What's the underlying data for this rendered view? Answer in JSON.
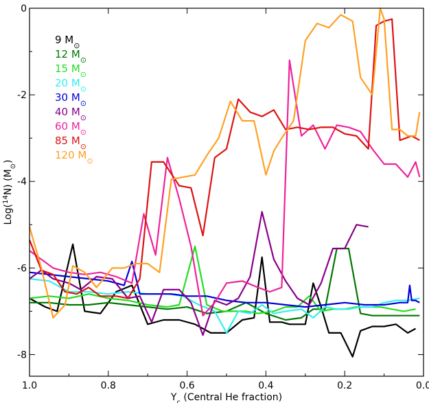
{
  "chart_data": {
    "type": "line",
    "xlabel": {
      "main": "Y",
      "sub": "c",
      "rest": " (Central He fraction)"
    },
    "ylabel": {
      "pre": "Log(",
      "sup": "14",
      "post": "N) (M",
      "sym": "⊙",
      "close": ")"
    },
    "xlim": [
      1.0,
      0.0
    ],
    "ylim": [
      -8.5,
      0.0
    ],
    "x_ticks": [
      1.0,
      0.8,
      0.6,
      0.4,
      0.2,
      0.0
    ],
    "x_tick_labels": [
      "1.0",
      "0.8",
      "0.6",
      "0.4",
      "0.2",
      "0.0"
    ],
    "y_ticks": [
      -8,
      -6,
      -4,
      -2,
      0
    ],
    "y_tick_labels": [
      "-8",
      "-6",
      "-4",
      "-2",
      "0"
    ],
    "grid": false,
    "legend_position": "top-left",
    "sun_symbol": "⊙",
    "series": [
      {
        "name": "9 M",
        "color": "#000000",
        "x": [
          1.0,
          0.96,
          0.93,
          0.89,
          0.86,
          0.82,
          0.78,
          0.74,
          0.7,
          0.66,
          0.62,
          0.58,
          0.54,
          0.5,
          0.46,
          0.43,
          0.41,
          0.39,
          0.36,
          0.34,
          0.32,
          0.3,
          0.28,
          0.26,
          0.24,
          0.21,
          0.18,
          0.16,
          0.13,
          0.1,
          0.07,
          0.04,
          0.02
        ],
        "y": [
          -6.7,
          -6.9,
          -7.0,
          -5.45,
          -7.0,
          -7.05,
          -6.55,
          -6.4,
          -7.3,
          -7.2,
          -7.2,
          -7.3,
          -7.5,
          -7.5,
          -7.2,
          -7.15,
          -5.75,
          -7.25,
          -7.25,
          -7.3,
          -7.3,
          -7.3,
          -6.35,
          -6.9,
          -7.5,
          -7.5,
          -8.05,
          -7.45,
          -7.35,
          -7.35,
          -7.3,
          -7.5,
          -7.4
        ]
      },
      {
        "name": "12 M",
        "color": "#007700",
        "x": [
          1.0,
          0.95,
          0.9,
          0.85,
          0.8,
          0.75,
          0.7,
          0.65,
          0.6,
          0.55,
          0.5,
          0.45,
          0.4,
          0.35,
          0.31,
          0.28,
          0.25,
          0.22,
          0.19,
          0.16,
          0.13,
          0.1,
          0.07,
          0.04,
          0.01
        ],
        "y": [
          -6.8,
          -6.8,
          -6.85,
          -6.85,
          -6.8,
          -6.85,
          -6.9,
          -6.95,
          -6.9,
          -7.05,
          -7.0,
          -6.8,
          -7.05,
          -7.2,
          -7.15,
          -6.95,
          -6.95,
          -5.55,
          -5.55,
          -7.05,
          -7.1,
          -7.1,
          -7.1,
          -7.1,
          -7.1
        ]
      },
      {
        "name": "15 M",
        "color": "#22dd22",
        "x": [
          1.0,
          0.95,
          0.9,
          0.85,
          0.8,
          0.75,
          0.7,
          0.65,
          0.62,
          0.58,
          0.55,
          0.51,
          0.48,
          0.45,
          0.42,
          0.38,
          0.35,
          0.32,
          0.29,
          0.26,
          0.23,
          0.2,
          0.17,
          0.14,
          0.11,
          0.08,
          0.05,
          0.02
        ],
        "y": [
          -6.7,
          -6.65,
          -6.7,
          -6.6,
          -6.7,
          -6.75,
          -6.85,
          -6.9,
          -6.85,
          -5.5,
          -6.85,
          -7.0,
          -7.0,
          -7.0,
          -7.05,
          -7.0,
          -6.9,
          -6.9,
          -6.65,
          -7.0,
          -6.95,
          -6.95,
          -6.9,
          -6.9,
          -6.9,
          -6.95,
          -7.0,
          -6.95
        ]
      },
      {
        "name": "20 M",
        "color": "#33eeee",
        "x": [
          1.0,
          0.95,
          0.9,
          0.85,
          0.8,
          0.75,
          0.7,
          0.65,
          0.61,
          0.57,
          0.53,
          0.5,
          0.47,
          0.44,
          0.41,
          0.38,
          0.35,
          0.31,
          0.28,
          0.25,
          0.22,
          0.19,
          0.16,
          0.13,
          0.1,
          0.07,
          0.04,
          0.01
        ],
        "y": [
          -6.25,
          -6.3,
          -6.55,
          -6.55,
          -6.6,
          -6.55,
          -6.6,
          -6.6,
          -6.65,
          -6.85,
          -7.0,
          -7.5,
          -7.0,
          -7.05,
          -6.85,
          -7.05,
          -7.0,
          -6.95,
          -7.15,
          -6.9,
          -6.95,
          -6.95,
          -6.9,
          -6.9,
          -6.8,
          -6.75,
          -6.75,
          -6.7
        ]
      },
      {
        "name": "30 M",
        "color": "#0000dd",
        "x": [
          1.0,
          0.95,
          0.9,
          0.85,
          0.8,
          0.76,
          0.74,
          0.72,
          0.68,
          0.64,
          0.6,
          0.55,
          0.5,
          0.45,
          0.4,
          0.35,
          0.3,
          0.25,
          0.2,
          0.15,
          0.1,
          0.06,
          0.04,
          0.035,
          0.03,
          0.02,
          0.01
        ],
        "y": [
          -6.1,
          -6.15,
          -6.2,
          -6.25,
          -6.3,
          -6.4,
          -5.85,
          -6.6,
          -6.6,
          -6.6,
          -6.65,
          -6.65,
          -6.75,
          -6.8,
          -6.8,
          -6.85,
          -6.9,
          -6.85,
          -6.8,
          -6.85,
          -6.85,
          -6.8,
          -6.8,
          -6.4,
          -6.75,
          -6.75,
          -6.8
        ]
      },
      {
        "name": "40 M",
        "color": "#880088",
        "x": [
          1.0,
          0.97,
          0.94,
          0.9,
          0.87,
          0.83,
          0.79,
          0.75,
          0.72,
          0.69,
          0.66,
          0.62,
          0.59,
          0.56,
          0.53,
          0.5,
          0.47,
          0.44,
          0.41,
          0.38,
          0.35,
          0.32,
          0.29,
          0.26,
          0.23,
          0.2,
          0.17,
          0.14
        ],
        "y": [
          -6.25,
          -6.05,
          -6.25,
          -6.35,
          -6.5,
          -6.2,
          -6.25,
          -6.7,
          -6.65,
          -7.25,
          -6.5,
          -6.5,
          -6.8,
          -7.55,
          -6.75,
          -6.85,
          -6.7,
          -6.2,
          -4.7,
          -5.8,
          -6.3,
          -6.7,
          -6.85,
          -6.35,
          -5.55,
          -5.55,
          -5.0,
          -5.05
        ]
      },
      {
        "name": "60 M",
        "color": "#ee2299",
        "x": [
          1.0,
          0.97,
          0.94,
          0.9,
          0.86,
          0.82,
          0.78,
          0.74,
          0.71,
          0.68,
          0.65,
          0.62,
          0.59,
          0.56,
          0.53,
          0.5,
          0.46,
          0.42,
          0.39,
          0.36,
          0.34,
          0.31,
          0.28,
          0.25,
          0.22,
          0.19,
          0.16,
          0.13,
          0.1,
          0.07,
          0.04,
          0.02,
          0.01
        ],
        "y": [
          -5.6,
          -5.8,
          -6.0,
          -6.1,
          -6.15,
          -6.1,
          -6.2,
          -6.35,
          -4.75,
          -5.7,
          -3.45,
          -4.4,
          -5.5,
          -7.1,
          -6.8,
          -6.35,
          -6.3,
          -6.45,
          -6.55,
          -6.45,
          -1.2,
          -2.95,
          -2.7,
          -3.25,
          -2.7,
          -2.75,
          -2.85,
          -3.25,
          -3.6,
          -3.6,
          -3.9,
          -3.55,
          -3.9
        ]
      },
      {
        "name": "85 M",
        "color": "#dd1111",
        "x": [
          1.0,
          0.97,
          0.94,
          0.91,
          0.88,
          0.85,
          0.82,
          0.78,
          0.75,
          0.72,
          0.69,
          0.66,
          0.62,
          0.59,
          0.56,
          0.53,
          0.5,
          0.47,
          0.44,
          0.41,
          0.38,
          0.35,
          0.32,
          0.29,
          0.26,
          0.23,
          0.2,
          0.17,
          0.14,
          0.12,
          0.1,
          0.08,
          0.06,
          0.03,
          0.01
        ],
        "y": [
          -5.35,
          -6.05,
          -6.15,
          -6.55,
          -6.6,
          -6.45,
          -6.65,
          -6.65,
          -6.7,
          -6.25,
          -3.55,
          -3.55,
          -4.1,
          -4.15,
          -5.25,
          -3.45,
          -3.25,
          -2.1,
          -2.4,
          -2.5,
          -2.35,
          -2.8,
          -2.75,
          -2.8,
          -2.75,
          -2.75,
          -2.9,
          -2.95,
          -3.25,
          -0.4,
          -0.3,
          -0.25,
          -3.05,
          -2.95,
          -3.05
        ]
      },
      {
        "name": "120 M",
        "color": "#ffa022",
        "x": [
          1.0,
          0.97,
          0.94,
          0.91,
          0.89,
          0.86,
          0.83,
          0.79,
          0.76,
          0.73,
          0.7,
          0.67,
          0.64,
          0.61,
          0.58,
          0.55,
          0.52,
          0.49,
          0.46,
          0.43,
          0.4,
          0.38,
          0.36,
          0.33,
          0.3,
          0.27,
          0.24,
          0.21,
          0.18,
          0.16,
          0.13,
          0.11,
          0.1,
          0.08,
          0.06,
          0.04,
          0.02,
          0.01
        ],
        "y": [
          -5.05,
          -6.0,
          -7.15,
          -6.85,
          -5.95,
          -6.1,
          -6.45,
          -6.0,
          -6.0,
          -5.9,
          -5.9,
          -6.1,
          -3.95,
          -3.9,
          -3.85,
          -3.4,
          -3.0,
          -2.15,
          -2.6,
          -2.6,
          -3.85,
          -3.3,
          -3.0,
          -2.6,
          -0.75,
          -0.35,
          -0.45,
          -0.15,
          -0.3,
          -1.6,
          -2.0,
          0.0,
          -0.25,
          -2.8,
          -2.8,
          -2.95,
          -2.95,
          -2.4
        ]
      }
    ]
  }
}
